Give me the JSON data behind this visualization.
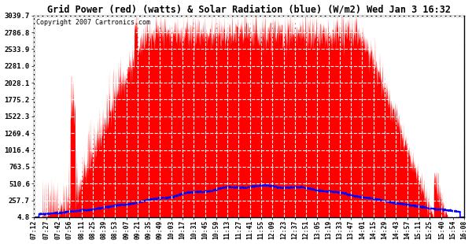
{
  "title": "Grid Power (red) (watts) & Solar Radiation (blue) (W/m2) Wed Jan 3 16:32",
  "copyright_text": "Copyright 2007 Cartronics.com",
  "background_color": "#ffffff",
  "plot_bg_color": "#ffffff",
  "grid_color": "#aaaaaa",
  "grid_style": "--",
  "red_fill_color": "#ff0000",
  "blue_line_color": "#0000ff",
  "y_ticks": [
    4.8,
    257.7,
    510.6,
    763.5,
    1016.4,
    1269.4,
    1522.3,
    1775.2,
    2028.1,
    2281.0,
    2533.9,
    2786.8,
    3039.7
  ],
  "x_tick_labels": [
    "07:12",
    "07:27",
    "07:42",
    "07:56",
    "08:11",
    "08:25",
    "08:39",
    "08:53",
    "09:07",
    "09:21",
    "09:35",
    "09:49",
    "10:03",
    "10:17",
    "10:31",
    "10:45",
    "10:59",
    "11:13",
    "11:27",
    "11:41",
    "11:55",
    "12:09",
    "12:23",
    "12:37",
    "12:51",
    "13:05",
    "13:19",
    "13:33",
    "13:47",
    "14:01",
    "14:15",
    "14:29",
    "14:43",
    "14:57",
    "15:11",
    "15:25",
    "15:40",
    "15:54",
    "16:08"
  ],
  "ymin": 4.8,
  "ymax": 3039.7
}
